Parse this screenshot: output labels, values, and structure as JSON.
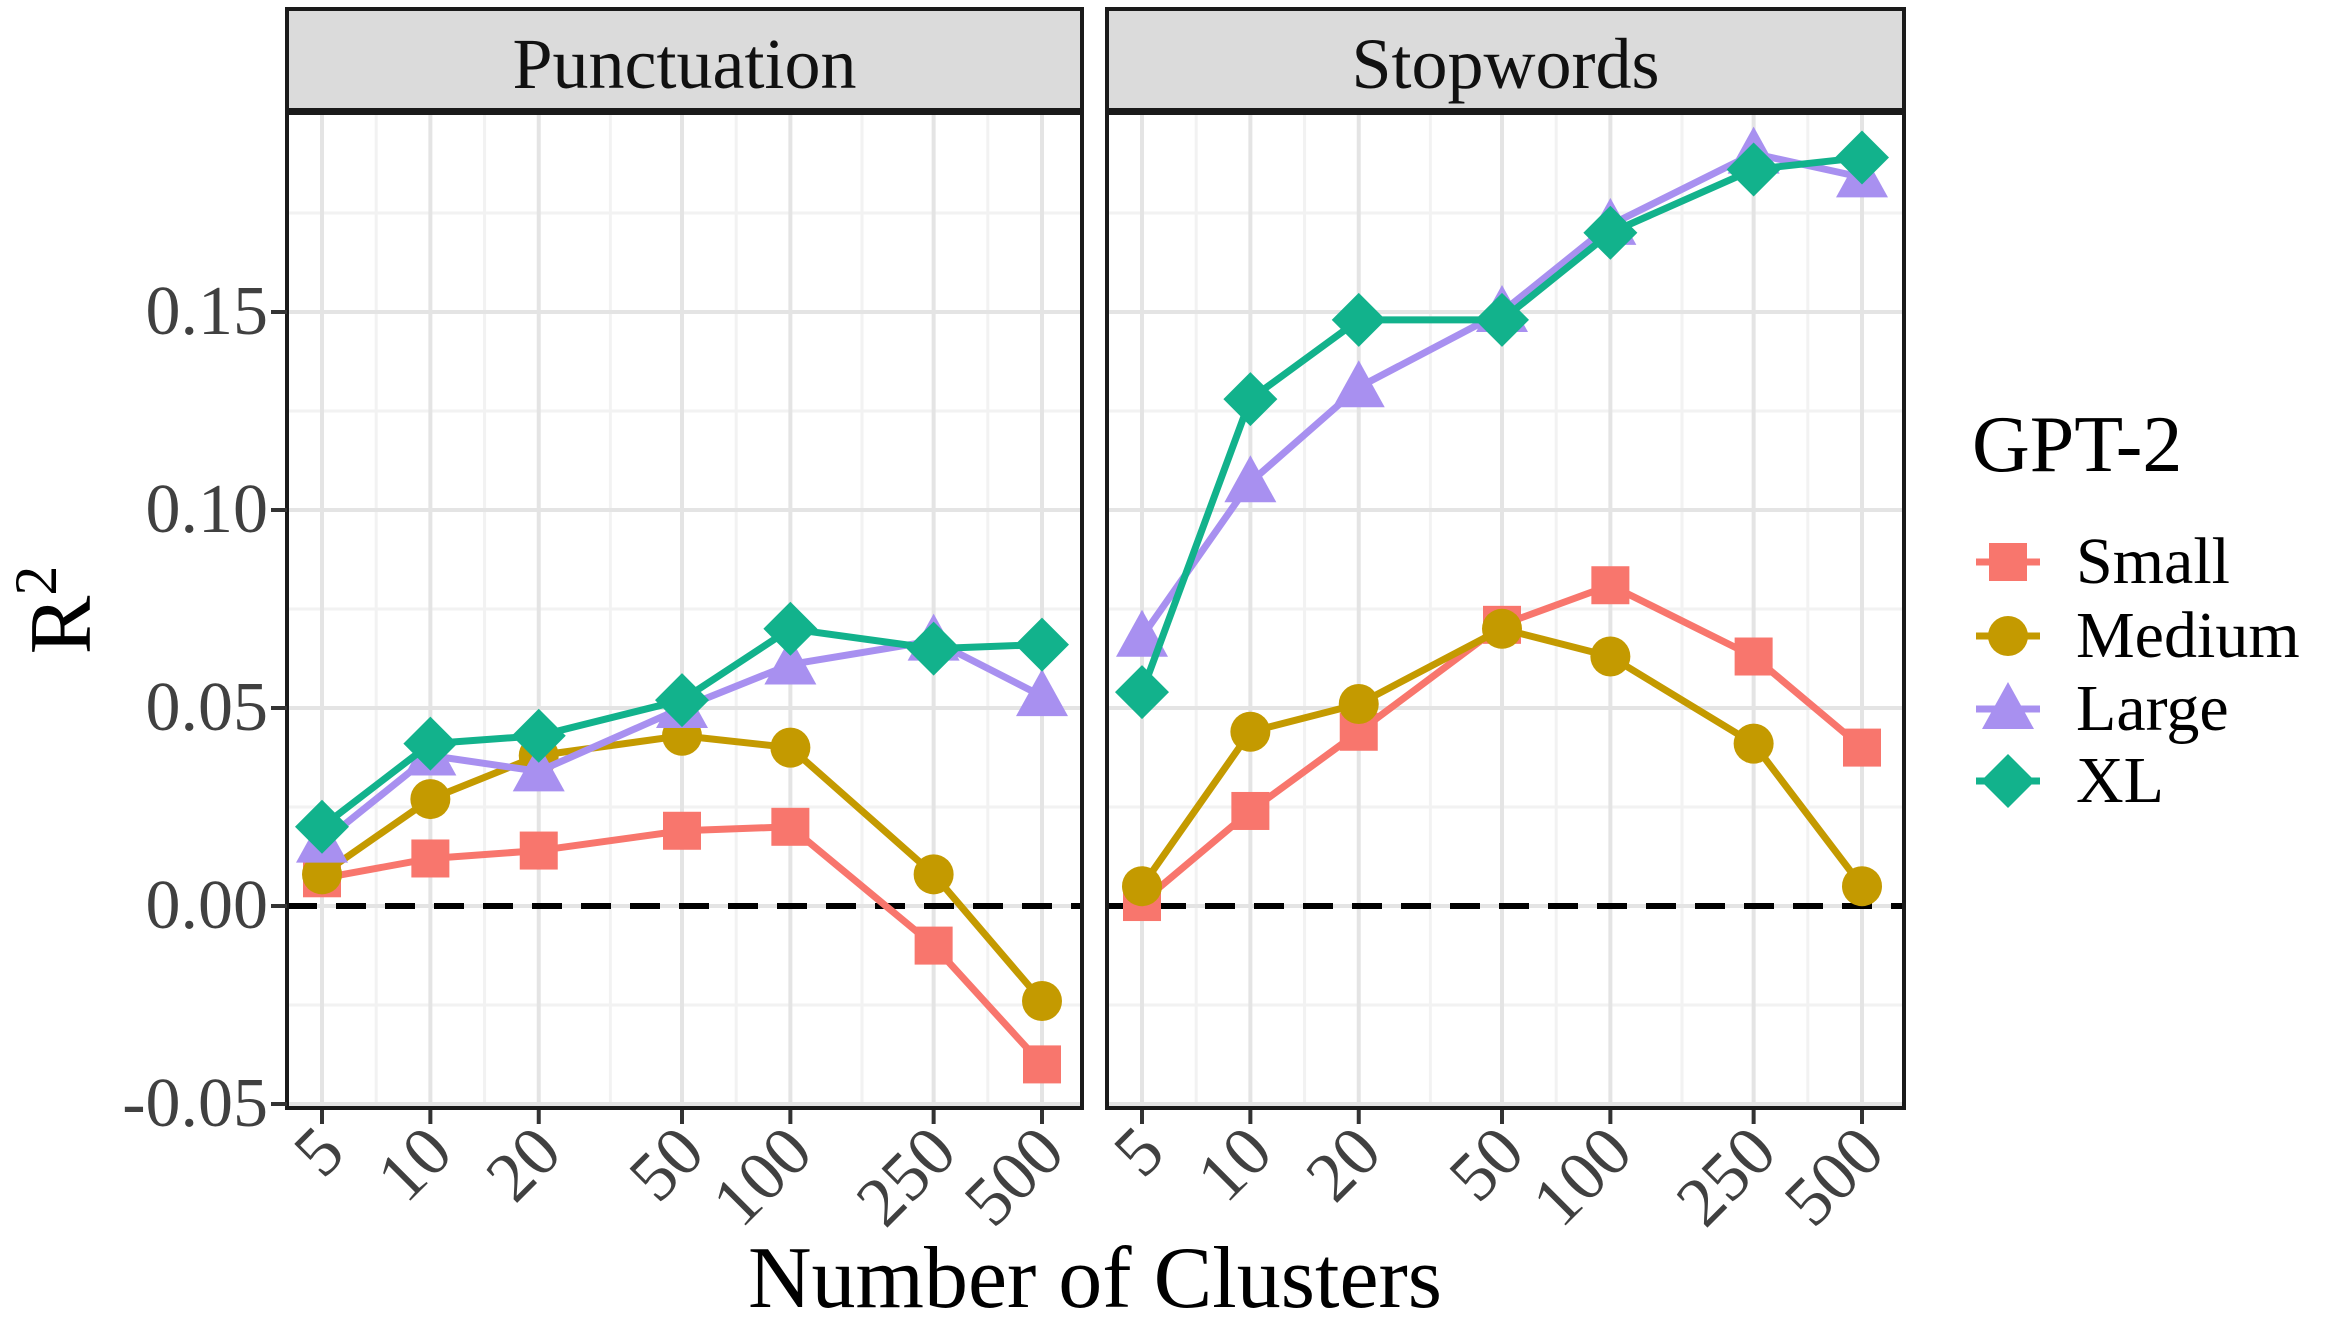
{
  "chart_data": {
    "type": "line",
    "xlabel": "Number of Clusters",
    "ylabel_base": "R",
    "ylabel_sup": "2",
    "x_scale": "log10",
    "x_ticks": [
      5,
      10,
      20,
      50,
      100,
      250,
      500
    ],
    "x_tick_labels": [
      "5",
      "10",
      "20",
      "50",
      "100",
      "250",
      "500"
    ],
    "y_ticks": [
      -0.05,
      0.0,
      0.05,
      0.1,
      0.15
    ],
    "y_tick_labels": [
      "-0.05",
      "0.00",
      "0.05",
      "0.10",
      "0.15"
    ],
    "ylim": [
      -0.051,
      0.2
    ],
    "grid": "on",
    "reference_line_y": 0.0,
    "reference_line_style": "dashed-black",
    "legend_position": "right",
    "legend": {
      "title": "GPT-2",
      "entries": [
        {
          "label": "Small",
          "marker": "square",
          "color": "#F8766D"
        },
        {
          "label": "Medium",
          "marker": "circle",
          "color": "#C49A00"
        },
        {
          "label": "Large",
          "marker": "triangle",
          "color": "#A890F0"
        },
        {
          "label": "XL",
          "marker": "diamond",
          "color": "#12B28C"
        }
      ]
    },
    "facets": [
      {
        "title": "Punctuation",
        "series": [
          {
            "name": "Small",
            "marker": "square",
            "color": "#F8766D",
            "x": [
              5,
              10,
              20,
              50,
              100,
              250,
              500
            ],
            "y": [
              0.007,
              0.012,
              0.014,
              0.019,
              0.02,
              -0.01,
              -0.04
            ]
          },
          {
            "name": "Medium",
            "marker": "circle",
            "color": "#C49A00",
            "x": [
              5,
              10,
              20,
              50,
              100,
              250,
              500
            ],
            "y": [
              0.008,
              0.027,
              0.038,
              0.043,
              0.04,
              0.008,
              -0.024
            ]
          },
          {
            "name": "Large",
            "marker": "triangle",
            "color": "#A890F0",
            "x": [
              5,
              10,
              20,
              50,
              100,
              250,
              500
            ],
            "y": [
              0.016,
              0.038,
              0.034,
              0.05,
              0.061,
              0.067,
              0.053
            ]
          },
          {
            "name": "XL",
            "marker": "diamond",
            "color": "#12B28C",
            "x": [
              5,
              10,
              20,
              50,
              100,
              250,
              500
            ],
            "y": [
              0.02,
              0.041,
              0.043,
              0.052,
              0.07,
              0.065,
              0.066
            ]
          }
        ]
      },
      {
        "title": "Stopwords",
        "series": [
          {
            "name": "Small",
            "marker": "square",
            "color": "#F8766D",
            "x": [
              5,
              10,
              20,
              50,
              100,
              250,
              500
            ],
            "y": [
              0.001,
              0.024,
              0.044,
              0.071,
              0.081,
              0.063,
              0.04
            ]
          },
          {
            "name": "Medium",
            "marker": "circle",
            "color": "#C49A00",
            "x": [
              5,
              10,
              20,
              50,
              100,
              250,
              500
            ],
            "y": [
              0.005,
              0.044,
              0.051,
              0.07,
              0.063,
              0.041,
              0.005
            ]
          },
          {
            "name": "Large",
            "marker": "triangle",
            "color": "#A890F0",
            "x": [
              5,
              10,
              20,
              50,
              100,
              250,
              500
            ],
            "y": [
              0.068,
              0.107,
              0.131,
              0.15,
              0.172,
              0.19,
              0.184
            ]
          },
          {
            "name": "XL",
            "marker": "diamond",
            "color": "#12B28C",
            "x": [
              5,
              10,
              20,
              50,
              100,
              250,
              500
            ],
            "y": [
              0.054,
              0.128,
              0.148,
              0.148,
              0.17,
              0.186,
              0.189
            ]
          }
        ]
      }
    ],
    "colors": {
      "strip_fill": "#DBDBDB",
      "panel_border": "#1a1a1a",
      "grid_major": "#E4E4E4",
      "grid_minor": "#F2F2F2",
      "tick_text": "#404040"
    }
  }
}
